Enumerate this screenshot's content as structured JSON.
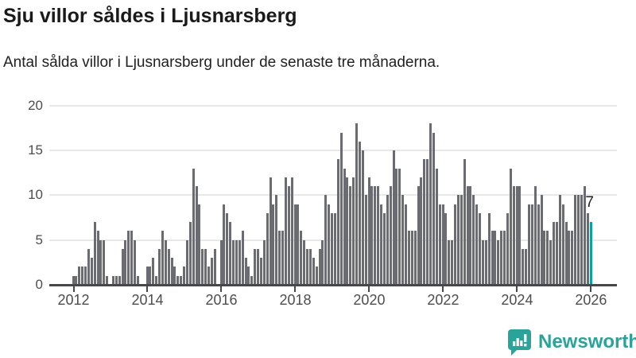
{
  "header": {
    "title": "Sju villor såldes i Ljusnarsberg",
    "subtitle": "Antal sålda villor i Ljusnarsberg under de senaste tre månaderna."
  },
  "chart_data": {
    "type": "bar",
    "title": "Sju villor såldes i Ljusnarsberg",
    "subtitle": "Antal sålda villor i Ljusnarsberg under de senaste tre månaderna.",
    "frequency": "monthly",
    "start_month": "2012-01",
    "end_month": "2026-01",
    "values": [
      1,
      1,
      2,
      2,
      2,
      4,
      3,
      7,
      6,
      5,
      5,
      1,
      0,
      1,
      1,
      1,
      4,
      5,
      6,
      6,
      5,
      1,
      0,
      0,
      2,
      2,
      3,
      1,
      4,
      6,
      5,
      4,
      3,
      2,
      1,
      1,
      2,
      5,
      7,
      13,
      11,
      9,
      4,
      4,
      2,
      3,
      4,
      0,
      5,
      9,
      8,
      7,
      5,
      5,
      5,
      6,
      3,
      2,
      1,
      4,
      4,
      3,
      5,
      8,
      12,
      9,
      10,
      6,
      6,
      12,
      11,
      12,
      9,
      9,
      6,
      5,
      4,
      4,
      3,
      2,
      4,
      5,
      10,
      9,
      8,
      8,
      14,
      17,
      13,
      12,
      11,
      12,
      18,
      16,
      15,
      10,
      12,
      11,
      11,
      11,
      9,
      8,
      10,
      11,
      15,
      13,
      13,
      10,
      9,
      6,
      6,
      6,
      11,
      12,
      14,
      14,
      18,
      17,
      13,
      9,
      9,
      8,
      5,
      5,
      9,
      10,
      10,
      14,
      11,
      11,
      10,
      9,
      8,
      5,
      5,
      8,
      6,
      6,
      5,
      6,
      6,
      8,
      13,
      11,
      11,
      11,
      4,
      4,
      9,
      9,
      11,
      9,
      10,
      6,
      6,
      5,
      7,
      7,
      10,
      9,
      7,
      6,
      6,
      10,
      10,
      10,
      11,
      8,
      7
    ],
    "bar_color": "#6b6b72",
    "highlight": {
      "index": 168,
      "value": 7,
      "label": "7",
      "color": "#0aa39c"
    },
    "ylim": [
      0,
      20
    ],
    "ytick_labels": [
      "20",
      "15",
      "10",
      "5",
      "0"
    ],
    "ytick_values": [
      20,
      15,
      10,
      5,
      0
    ],
    "xtick_labels": [
      "2012",
      "2014",
      "2016",
      "2018",
      "2020",
      "2022",
      "2024",
      "2026"
    ],
    "grid": true,
    "legend": "none"
  },
  "footer": {
    "brand": "Newsworthy",
    "brand_color": "#2aa39b",
    "logo_icon": "bar-chart-speech-bubble-icon"
  }
}
